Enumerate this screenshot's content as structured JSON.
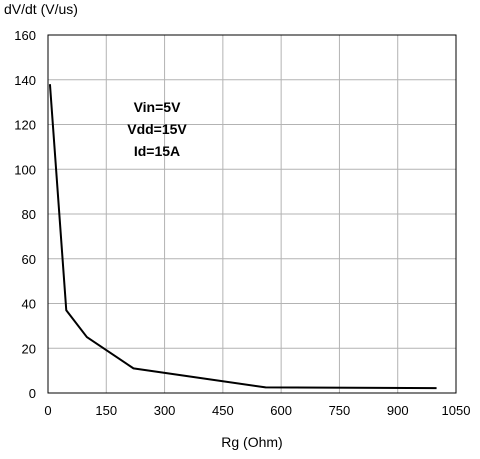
{
  "chart_data": {
    "type": "line",
    "title": "",
    "xlabel": "Rg (Ohm)",
    "ylabel": "dV/dt (V/us)",
    "xlim": [
      0,
      1050
    ],
    "ylim": [
      0,
      160
    ],
    "x_ticks": [
      0,
      150,
      300,
      450,
      600,
      750,
      900,
      1050
    ],
    "y_ticks": [
      0,
      20,
      40,
      60,
      80,
      100,
      120,
      140,
      160
    ],
    "grid": true,
    "annotations": [
      "Vin=5V",
      "Vdd=15V",
      "Id=15A"
    ],
    "series": [
      {
        "color": "#000000",
        "x": [
          5,
          47,
          100,
          220,
          560,
          1000
        ],
        "y": [
          138,
          37,
          25,
          11,
          2.5,
          2.2
        ]
      }
    ]
  }
}
